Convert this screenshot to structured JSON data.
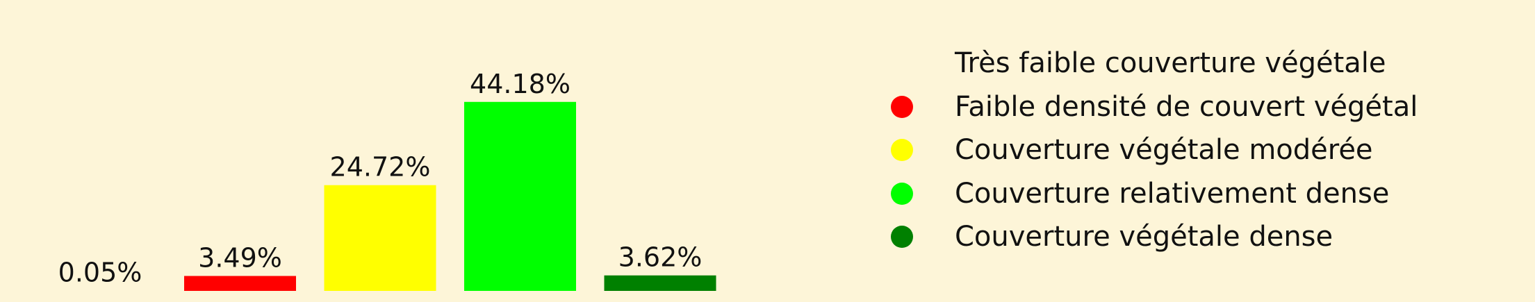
{
  "chart_data": {
    "type": "bar",
    "title": "",
    "xlabel": "",
    "ylabel": "",
    "ylim": [
      0,
      68
    ],
    "grid": false,
    "legend_placement": "right",
    "categories": [
      "Très faible couverture végétale",
      "Faible densité de couvert végétal",
      "Couverture végétale modérée",
      "Couverture relativement dense",
      "Couverture végétale dense"
    ],
    "values": [
      0.05,
      3.49,
      24.72,
      44.18,
      3.62
    ],
    "data_labels": [
      "0.05%",
      "3.49%",
      "24.72%",
      "44.18%",
      "3.62%"
    ],
    "colors": [
      "#fdf5d8",
      "#ff0000",
      "#ffff00",
      "#00ff00",
      "#008000"
    ]
  }
}
